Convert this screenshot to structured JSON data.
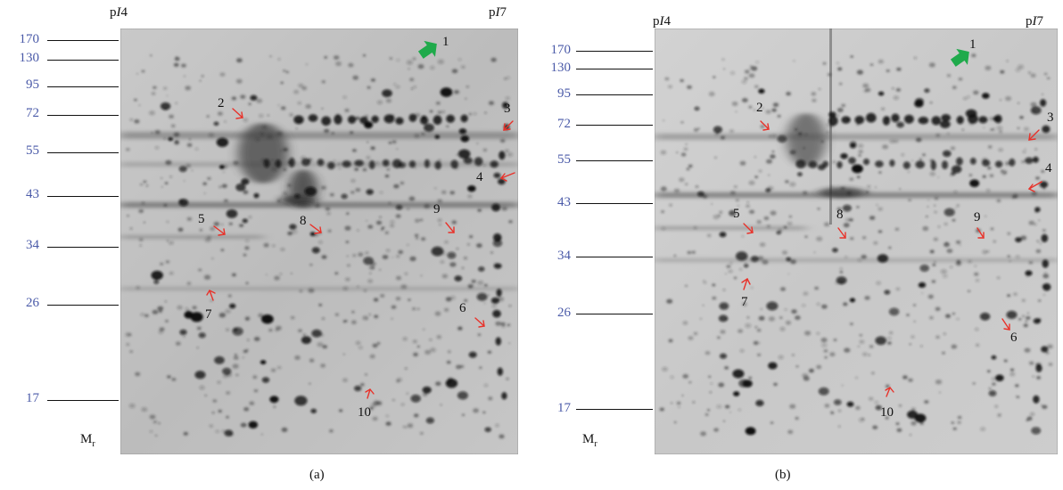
{
  "figure": {
    "panels": [
      {
        "id": "a",
        "caption": "(a)",
        "pi_left": {
          "prefix": "p",
          "italic": "I",
          "value": "4"
        },
        "pi_right": {
          "prefix": "p",
          "italic": "I",
          "value": "7"
        },
        "mr_label": {
          "main": "M",
          "sub": "r"
        },
        "mw_markers": [
          "170",
          "130",
          "95",
          "72",
          "55",
          "43",
          "34",
          "26",
          "17"
        ],
        "spot_labels": [
          "1",
          "2",
          "3",
          "4",
          "5",
          "6",
          "7",
          "8",
          "9",
          "10"
        ]
      },
      {
        "id": "b",
        "caption": "(b)",
        "pi_left": {
          "prefix": "p",
          "italic": "I",
          "value": "4"
        },
        "pi_right": {
          "prefix": "p",
          "italic": "I",
          "value": "7"
        },
        "mr_label": {
          "main": "M",
          "sub": "r"
        },
        "mw_markers": [
          "170",
          "130",
          "95",
          "72",
          "55",
          "43",
          "34",
          "26",
          "17"
        ],
        "spot_labels": [
          "1",
          "2",
          "3",
          "4",
          "5",
          "6",
          "7",
          "8",
          "9",
          "10"
        ]
      }
    ],
    "colors": {
      "marker_text": "#4a5aa8",
      "arrow_red": "#e8322a",
      "arrow_green": "#1faa4b"
    }
  }
}
